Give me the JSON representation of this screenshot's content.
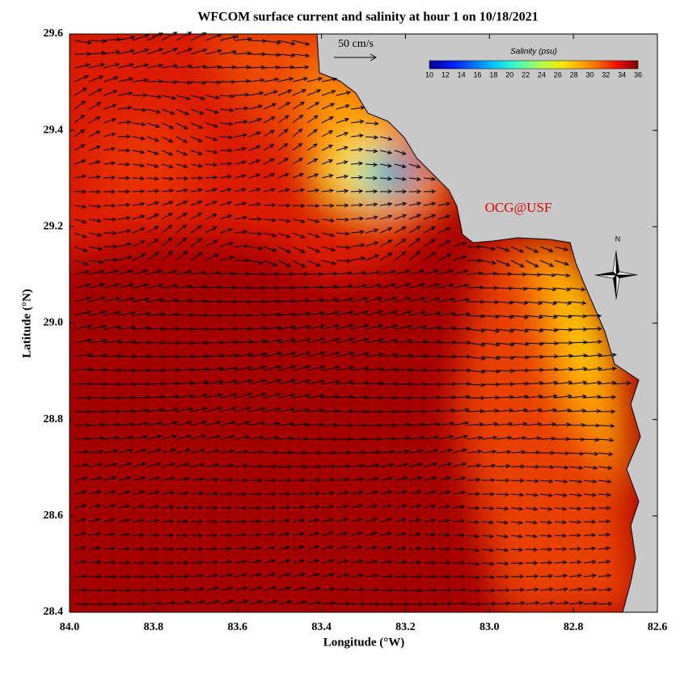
{
  "map": {
    "title": "WFCOM surface current and salinity at hour 1 on 10/18/2021",
    "xlabel": "Longitude (°W)",
    "ylabel": "Latitude (°N)",
    "xlim": [
      84.0,
      82.6
    ],
    "ylim": [
      28.4,
      29.6
    ],
    "xticks": [
      {
        "value": 84.0,
        "label": "84.0"
      },
      83.8,
      83.6,
      83.4,
      83.2,
      {
        "value": 83.0,
        "label": "83.0"
      },
      82.8,
      82.6
    ],
    "yticks": [
      28.4,
      28.6,
      28.8,
      {
        "value": 29.0,
        "label": "29.0"
      },
      29.2,
      29.4,
      29.6
    ],
    "colorbar": {
      "title": "Salinity (psu)",
      "lim": [
        10,
        36
      ],
      "ticks": [
        10,
        12,
        14,
        16,
        18,
        20,
        22,
        24,
        26,
        28,
        30,
        32,
        34,
        36
      ]
    },
    "scale_label": "50 cm/s",
    "watermark": "OCG@USF",
    "north_label": "N"
  }
}
